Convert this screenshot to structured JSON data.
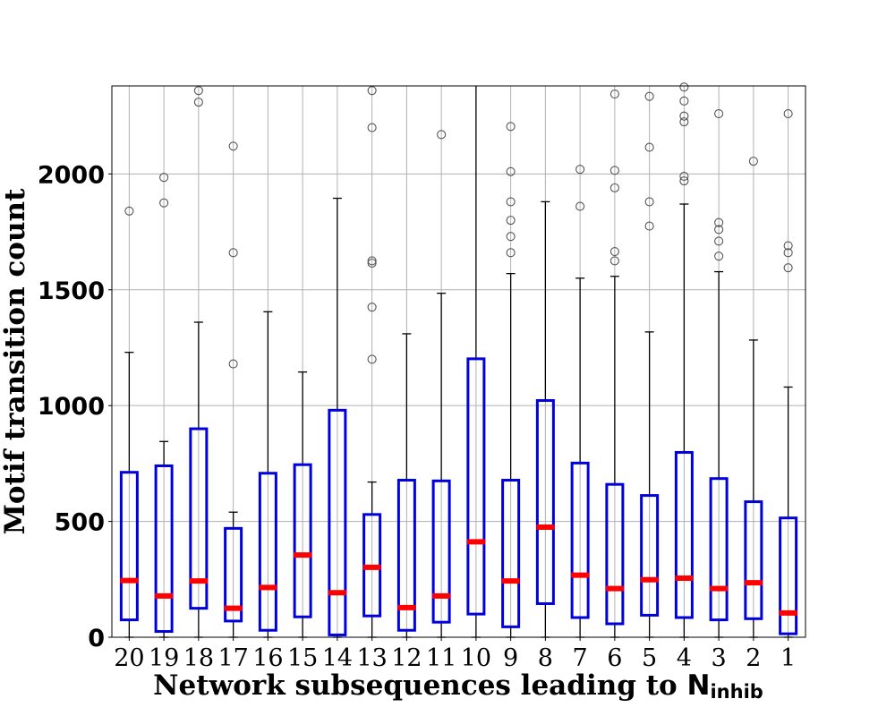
{
  "chart_data": {
    "type": "box",
    "xlabel": "Network subsequences leading to",
    "xlabel_symbol": "N",
    "xlabel_subscript": "inhib",
    "ylabel": "Motif transition count",
    "ylim": [
      0,
      2380
    ],
    "yticks": [
      0,
      500,
      1000,
      1500,
      2000
    ],
    "grid": true,
    "colors": {
      "box": "#0000dd",
      "median": "#ff0000",
      "whisker": "#000000",
      "flier": "#555555",
      "grid": "#b0b0b0"
    },
    "categories": [
      "20",
      "19",
      "18",
      "17",
      "16",
      "15",
      "14",
      "13",
      "12",
      "11",
      "10",
      "9",
      "8",
      "7",
      "6",
      "5",
      "4",
      "3",
      "2",
      "1"
    ],
    "boxes": [
      {
        "label": "20",
        "q1": 75,
        "median": 245,
        "q3": 712,
        "whislo": 0,
        "whishi": 1230,
        "fliers": [
          1840
        ]
      },
      {
        "label": "19",
        "q1": 25,
        "median": 178,
        "q3": 740,
        "whislo": 0,
        "whishi": 845,
        "fliers": [
          1875,
          1985
        ]
      },
      {
        "label": "18",
        "q1": 125,
        "median": 243,
        "q3": 900,
        "whislo": 0,
        "whishi": 1360,
        "fliers": [
          2310,
          2360
        ]
      },
      {
        "label": "17",
        "q1": 70,
        "median": 125,
        "q3": 470,
        "whislo": 0,
        "whishi": 540,
        "fliers": [
          1180,
          1660,
          2120
        ]
      },
      {
        "label": "16",
        "q1": 30,
        "median": 215,
        "q3": 708,
        "whislo": 0,
        "whishi": 1405,
        "fliers": []
      },
      {
        "label": "15",
        "q1": 88,
        "median": 355,
        "q3": 745,
        "whislo": 0,
        "whishi": 1145,
        "fliers": []
      },
      {
        "label": "14",
        "q1": 10,
        "median": 192,
        "q3": 980,
        "whislo": 0,
        "whishi": 1895,
        "fliers": []
      },
      {
        "label": "13",
        "q1": 92,
        "median": 302,
        "q3": 530,
        "whislo": 0,
        "whishi": 670,
        "fliers": [
          1200,
          1425,
          1615,
          1625,
          2200,
          2360
        ]
      },
      {
        "label": "12",
        "q1": 30,
        "median": 128,
        "q3": 678,
        "whislo": 0,
        "whishi": 1310,
        "fliers": []
      },
      {
        "label": "11",
        "q1": 65,
        "median": 178,
        "q3": 675,
        "whislo": 0,
        "whishi": 1485,
        "fliers": [
          2170
        ]
      },
      {
        "label": "10",
        "q1": 100,
        "median": 412,
        "q3": 1202,
        "whislo": 0,
        "whishi": 2380,
        "fliers": []
      },
      {
        "label": "9",
        "q1": 45,
        "median": 243,
        "q3": 678,
        "whislo": 0,
        "whishi": 1570,
        "fliers": [
          1660,
          1730,
          1800,
          1880,
          2010,
          2205
        ]
      },
      {
        "label": "8",
        "q1": 145,
        "median": 475,
        "q3": 1022,
        "whislo": 0,
        "whishi": 1880,
        "fliers": []
      },
      {
        "label": "7",
        "q1": 85,
        "median": 268,
        "q3": 752,
        "whislo": 0,
        "whishi": 1550,
        "fliers": [
          1860,
          2020
        ]
      },
      {
        "label": "6",
        "q1": 58,
        "median": 210,
        "q3": 660,
        "whislo": 0,
        "whishi": 1558,
        "fliers": [
          1625,
          1665,
          1940,
          2015,
          2345
        ]
      },
      {
        "label": "5",
        "q1": 95,
        "median": 248,
        "q3": 612,
        "whislo": 0,
        "whishi": 1318,
        "fliers": [
          1775,
          1880,
          2115,
          2335
        ]
      },
      {
        "label": "4",
        "q1": 85,
        "median": 255,
        "q3": 798,
        "whislo": 0,
        "whishi": 1870,
        "fliers": [
          1970,
          1990,
          2225,
          2250,
          2315,
          2375
        ]
      },
      {
        "label": "3",
        "q1": 75,
        "median": 210,
        "q3": 685,
        "whislo": 0,
        "whishi": 1578,
        "fliers": [
          1645,
          1710,
          1760,
          1790,
          2260
        ]
      },
      {
        "label": "2",
        "q1": 80,
        "median": 235,
        "q3": 585,
        "whislo": 0,
        "whishi": 1283,
        "fliers": [
          2055
        ]
      },
      {
        "label": "1",
        "q1": 15,
        "median": 105,
        "q3": 515,
        "whislo": 0,
        "whishi": 1080,
        "fliers": [
          1595,
          1660,
          1690,
          2260
        ]
      }
    ]
  }
}
